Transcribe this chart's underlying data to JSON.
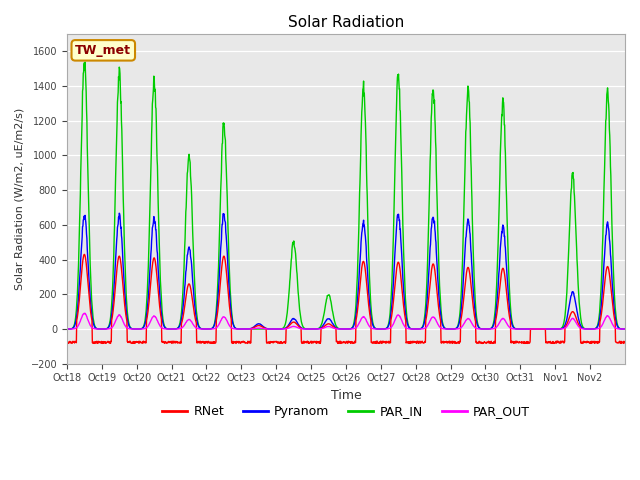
{
  "title": "Solar Radiation",
  "ylabel": "Solar Radiation (W/m2, uE/m2/s)",
  "xlabel": "Time",
  "ylim": [
    -200,
    1700
  ],
  "yticks": [
    -200,
    0,
    200,
    400,
    600,
    800,
    1000,
    1200,
    1400,
    1600
  ],
  "fig_bg_color": "#ffffff",
  "plot_bg_color": "#e8e8e8",
  "grid_color": "#ffffff",
  "station_label": "TW_met",
  "series": {
    "RNet": {
      "color": "#ff0000",
      "lw": 1.0
    },
    "Pyranom": {
      "color": "#0000ff",
      "lw": 1.0
    },
    "PAR_IN": {
      "color": "#00cc00",
      "lw": 1.0
    },
    "PAR_OUT": {
      "color": "#ff00ff",
      "lw": 1.0
    }
  },
  "x_tick_labels": [
    "Oct 18",
    "Oct 19",
    "Oct 20",
    "Oct 21",
    "Oct 22",
    "Oct 23",
    "Oct 24",
    "Oct 25",
    "Oct 26",
    "Oct 27",
    "Oct 28",
    "Oct 29",
    "Oct 30",
    "Oct 31",
    "Nov 1",
    "Nov 2"
  ],
  "num_days": 16,
  "points_per_day": 96,
  "par_in_peaks": [
    1530,
    1470,
    1440,
    1000,
    1180,
    0,
    500,
    200,
    1390,
    1455,
    1390,
    1380,
    1300,
    0,
    880,
    1350
  ],
  "pyranom_peaks": [
    650,
    650,
    640,
    470,
    660,
    30,
    60,
    60,
    610,
    655,
    650,
    625,
    585,
    0,
    210,
    600
  ],
  "rnet_day_peaks": [
    430,
    420,
    410,
    260,
    420,
    20,
    40,
    30,
    390,
    385,
    375,
    355,
    350,
    0,
    100,
    360
  ],
  "par_out_peaks": [
    90,
    80,
    75,
    55,
    70,
    5,
    15,
    15,
    70,
    80,
    70,
    60,
    60,
    0,
    60,
    75
  ],
  "rnet_night_val": -75,
  "title_fontsize": 11,
  "label_fontsize": 8,
  "tick_fontsize": 7,
  "legend_fontsize": 9
}
